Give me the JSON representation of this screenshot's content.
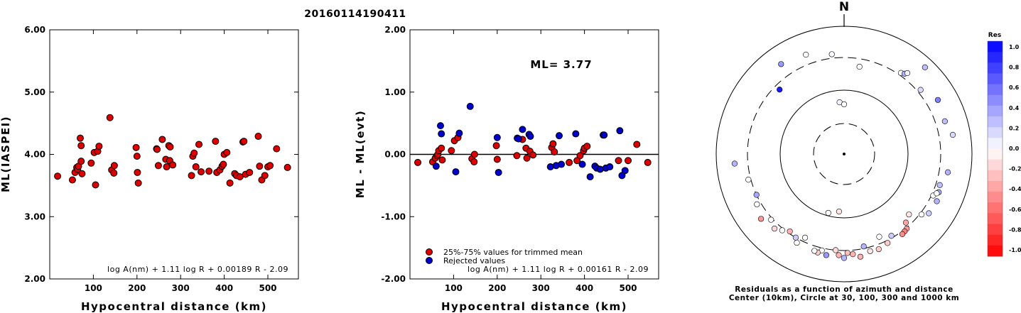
{
  "title": "20160114190411",
  "chart_data": [
    {
      "type": "scatter",
      "xlabel": "Hypocentral distance (km)",
      "ylabel": "ML(IASPEI)",
      "xlim": [
        0,
        570
      ],
      "ylim": [
        2.0,
        6.0
      ],
      "xticks": [
        "100",
        "200",
        "300",
        "400",
        "500"
      ],
      "yticks": [
        "2.00",
        "3.00",
        "4.00",
        "5.00",
        "6.00"
      ],
      "formula": "log A(nm) + 1.11 log R + 0.00189 R - 2.09",
      "points": [
        [
          18,
          3.65
        ],
        [
          52,
          3.59
        ],
        [
          58,
          3.71
        ],
        [
          62,
          3.79
        ],
        [
          64,
          3.76
        ],
        [
          66,
          3.81
        ],
        [
          70,
          4.26
        ],
        [
          72,
          4.14
        ],
        [
          72,
          3.89
        ],
        [
          74,
          3.69
        ],
        [
          95,
          3.86
        ],
        [
          102,
          4.03
        ],
        [
          105,
          3.51
        ],
        [
          110,
          4.05
        ],
        [
          113,
          4.13
        ],
        [
          138,
          4.59
        ],
        [
          142,
          3.75
        ],
        [
          147,
          3.7
        ],
        [
          148,
          3.82
        ],
        [
          198,
          4.11
        ],
        [
          200,
          3.97
        ],
        [
          201,
          3.71
        ],
        [
          203,
          3.54
        ],
        [
          245,
          4.09
        ],
        [
          246,
          4.08
        ],
        [
          249,
          3.82
        ],
        [
          258,
          4.24
        ],
        [
          266,
          3.92
        ],
        [
          268,
          3.8
        ],
        [
          273,
          4.14
        ],
        [
          275,
          3.9
        ],
        [
          276,
          4.12
        ],
        [
          282,
          3.83
        ],
        [
          325,
          3.66
        ],
        [
          328,
          3.97
        ],
        [
          331,
          4.02
        ],
        [
          335,
          3.8
        ],
        [
          342,
          4.16
        ],
        [
          347,
          3.72
        ],
        [
          365,
          3.73
        ],
        [
          380,
          4.21
        ],
        [
          383,
          3.71
        ],
        [
          390,
          3.75
        ],
        [
          395,
          3.81
        ],
        [
          398,
          3.84
        ],
        [
          400,
          4.0
        ],
        [
          406,
          4.03
        ],
        [
          413,
          3.54
        ],
        [
          424,
          3.69
        ],
        [
          428,
          3.66
        ],
        [
          436,
          3.64
        ],
        [
          443,
          4.2
        ],
        [
          445,
          4.21
        ],
        [
          449,
          3.68
        ],
        [
          458,
          3.71
        ],
        [
          478,
          4.29
        ],
        [
          481,
          3.81
        ],
        [
          486,
          3.59
        ],
        [
          493,
          3.66
        ],
        [
          500,
          3.8
        ],
        [
          505,
          3.82
        ],
        [
          520,
          4.09
        ],
        [
          545,
          3.79
        ]
      ]
    },
    {
      "type": "scatter",
      "xlabel": "Hypocentral distance (km)",
      "ylabel": "ML - ML(evt)",
      "xlim": [
        0,
        570
      ],
      "ylim": [
        -2.0,
        2.0
      ],
      "xticks": [
        "100",
        "200",
        "300",
        "400",
        "500"
      ],
      "yticks": [
        "-2.00",
        "-1.00",
        "0.00",
        "1.00",
        "2.00"
      ],
      "annotation": "ML= 3.77",
      "formula": "log A(nm) + 1.11 log R + 0.00161 R - 2.09",
      "legend": [
        {
          "label": "25%-75% values for trimmed mean",
          "color": "#dd0000"
        },
        {
          "label": "Rejected values",
          "color": "#0000cc"
        }
      ],
      "series": [
        {
          "name": "25%-75% values for trimmed mean",
          "color": "#dd0000",
          "points": [
            [
              18,
              -0.13
            ],
            [
              52,
              -0.12
            ],
            [
              58,
              -0.06
            ],
            [
              62,
              -0.02
            ],
            [
              64,
              0.0
            ],
            [
              66,
              0.06
            ],
            [
              72,
              0.1
            ],
            [
              74,
              -0.09
            ],
            [
              95,
              0.06
            ],
            [
              102,
              0.22
            ],
            [
              110,
              0.27
            ],
            [
              142,
              -0.07
            ],
            [
              147,
              -0.12
            ],
            [
              148,
              0.0
            ],
            [
              198,
              0.14
            ],
            [
              200,
              -0.08
            ],
            [
              245,
              -0.02
            ],
            [
              258,
              0.24
            ],
            [
              266,
              0.1
            ],
            [
              268,
              -0.06
            ],
            [
              275,
              0.05
            ],
            [
              282,
              -0.01
            ],
            [
              325,
              0.11
            ],
            [
              328,
              0.17
            ],
            [
              331,
              0.04
            ],
            [
              365,
              -0.13
            ],
            [
              383,
              -0.1
            ],
            [
              390,
              -0.02
            ],
            [
              398,
              0.06
            ],
            [
              400,
              0.1
            ],
            [
              406,
              0.13
            ],
            [
              478,
              -0.1
            ],
            [
              500,
              -0.1
            ],
            [
              520,
              0.16
            ],
            [
              545,
              -0.13
            ]
          ]
        },
        {
          "name": "Rejected values",
          "color": "#0000cc",
          "points": [
            [
              60,
              -0.19
            ],
            [
              70,
              0.46
            ],
            [
              72,
              0.33
            ],
            [
              105,
              -0.28
            ],
            [
              113,
              0.34
            ],
            [
              138,
              0.77
            ],
            [
              203,
              -0.29
            ],
            [
              200,
              0.27
            ],
            [
              246,
              0.26
            ],
            [
              249,
              0.25
            ],
            [
              258,
              0.4
            ],
            [
              273,
              0.32
            ],
            [
              276,
              0.29
            ],
            [
              322,
              -0.2
            ],
            [
              335,
              -0.18
            ],
            [
              342,
              0.3
            ],
            [
              347,
              -0.16
            ],
            [
              380,
              0.33
            ],
            [
              395,
              -0.16
            ],
            [
              413,
              -0.36
            ],
            [
              424,
              -0.19
            ],
            [
              428,
              -0.22
            ],
            [
              436,
              -0.24
            ],
            [
              443,
              0.31
            ],
            [
              445,
              0.31
            ],
            [
              449,
              -0.22
            ],
            [
              458,
              -0.2
            ],
            [
              481,
              0.38
            ],
            [
              486,
              -0.34
            ],
            [
              493,
              -0.26
            ]
          ]
        }
      ]
    },
    {
      "type": "scatter",
      "subtype": "polar",
      "north_label": "N",
      "caption_line1": "Residuals as a function of azimuth and distance",
      "caption_line2": "Center (10km), Circle at 30, 100, 300 and 1000 km",
      "colorbar_title": "Res",
      "colorbar_ticks": [
        "1.0",
        "0.8",
        "0.6",
        "0.4",
        "0.2",
        "0.0",
        "-0.2",
        "-0.4",
        "-0.6",
        "-0.8",
        "-1.0"
      ],
      "points": [
        [
          353,
          350,
          0.02
        ],
        [
          325,
          500,
          0.4
        ],
        [
          315,
          250,
          0.9
        ],
        [
          339,
          440,
          0.0
        ],
        [
          10,
          230,
          0.0
        ],
        [
          43,
          700,
          0.25
        ],
        [
          35,
          330,
          0.0
        ],
        [
          37,
          350,
          0.3
        ],
        [
          38,
          380,
          0.05
        ],
        [
          50,
          340,
          0.15
        ],
        [
          60,
          470,
          0.5
        ],
        [
          72,
          430,
          0.25
        ],
        [
          80,
          510,
          0.15
        ],
        [
          100,
          420,
          0.3
        ],
        [
          108,
          350,
          0.25
        ],
        [
          112,
          370,
          0.3
        ],
        [
          117,
          400,
          0.3
        ],
        [
          115,
          320,
          0.0
        ],
        [
          113,
          350,
          0.0
        ],
        [
          125,
          390,
          0.2
        ],
        [
          128,
          320,
          0.0
        ],
        [
          133,
          230,
          -0.1
        ],
        [
          138,
          260,
          -0.35
        ],
        [
          140,
          310,
          -0.4
        ],
        [
          142,
          320,
          -0.5
        ],
        [
          144,
          330,
          -0.45
        ],
        [
          150,
          280,
          0.2
        ],
        [
          154,
          330,
          -0.2
        ],
        [
          160,
          360,
          -0.2
        ],
        [
          157,
          240,
          0.0
        ],
        [
          165,
          350,
          -0.1
        ],
        [
          168,
          280,
          0.3
        ],
        [
          171,
          400,
          -0.3
        ],
        [
          175,
          350,
          -0.3
        ],
        [
          178,
          330,
          -0.25
        ],
        [
          180,
          400,
          0.3
        ],
        [
          183,
          360,
          -0.3
        ],
        [
          185,
          300,
          -0.15
        ],
        [
          190,
          380,
          0.4
        ],
        [
          193,
          330,
          0.0
        ],
        [
          195,
          370,
          -0.2
        ],
        [
          197,
          360,
          0.0
        ],
        [
          205,
          260,
          0.0
        ],
        [
          208,
          350,
          0.0
        ],
        [
          210,
          300,
          0.2
        ],
        [
          215,
          280,
          -0.3
        ],
        [
          219,
          320,
          0.0
        ],
        [
          223,
          370,
          -0.15
        ],
        [
          228,
          320,
          0.0
        ],
        [
          232,
          420,
          -0.4
        ],
        [
          240,
          350,
          0.0
        ],
        [
          245,
          300,
          0.35
        ],
        [
          255,
          330,
          0.0
        ],
        [
          265,
          500,
          0.3
        ],
        [
          185,
          80,
          -0.1
        ],
        [
          355,
          65,
          0.05
        ],
        [
          0,
          60,
          0.0
        ],
        [
          195,
          90,
          0.0
        ]
      ]
    }
  ]
}
